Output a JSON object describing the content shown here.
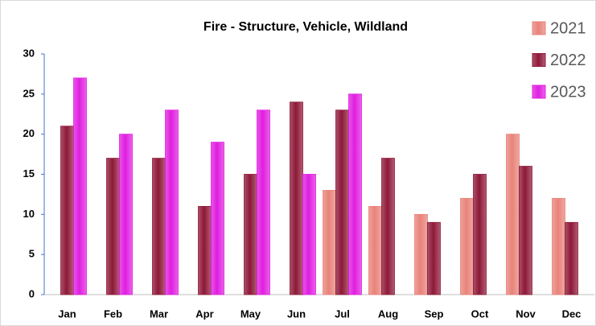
{
  "chart_data": {
    "type": "bar",
    "title": "Fire - Structure, Vehicle, Wildland",
    "categories": [
      "Jan",
      "Feb",
      "Mar",
      "Apr",
      "May",
      "Jun",
      "Jul",
      "Aug",
      "Sep",
      "Oct",
      "Nov",
      "Dec"
    ],
    "series": [
      {
        "name": "2021",
        "color": "#e8837a",
        "values": [
          null,
          null,
          null,
          null,
          null,
          null,
          13,
          11,
          10,
          12,
          20,
          12
        ]
      },
      {
        "name": "2022",
        "color": "#8e1838",
        "values": [
          21,
          17,
          17,
          11,
          15,
          24,
          23,
          17,
          9,
          15,
          16,
          9
        ]
      },
      {
        "name": "2023",
        "color": "#e01ee0",
        "values": [
          27,
          20,
          23,
          19,
          23,
          15,
          25,
          null,
          null,
          null,
          null,
          null
        ]
      }
    ],
    "ylim": [
      0,
      30
    ],
    "yticks": [
      0,
      5,
      10,
      15,
      20,
      25,
      30
    ],
    "grid": false,
    "legend": "top-right"
  }
}
